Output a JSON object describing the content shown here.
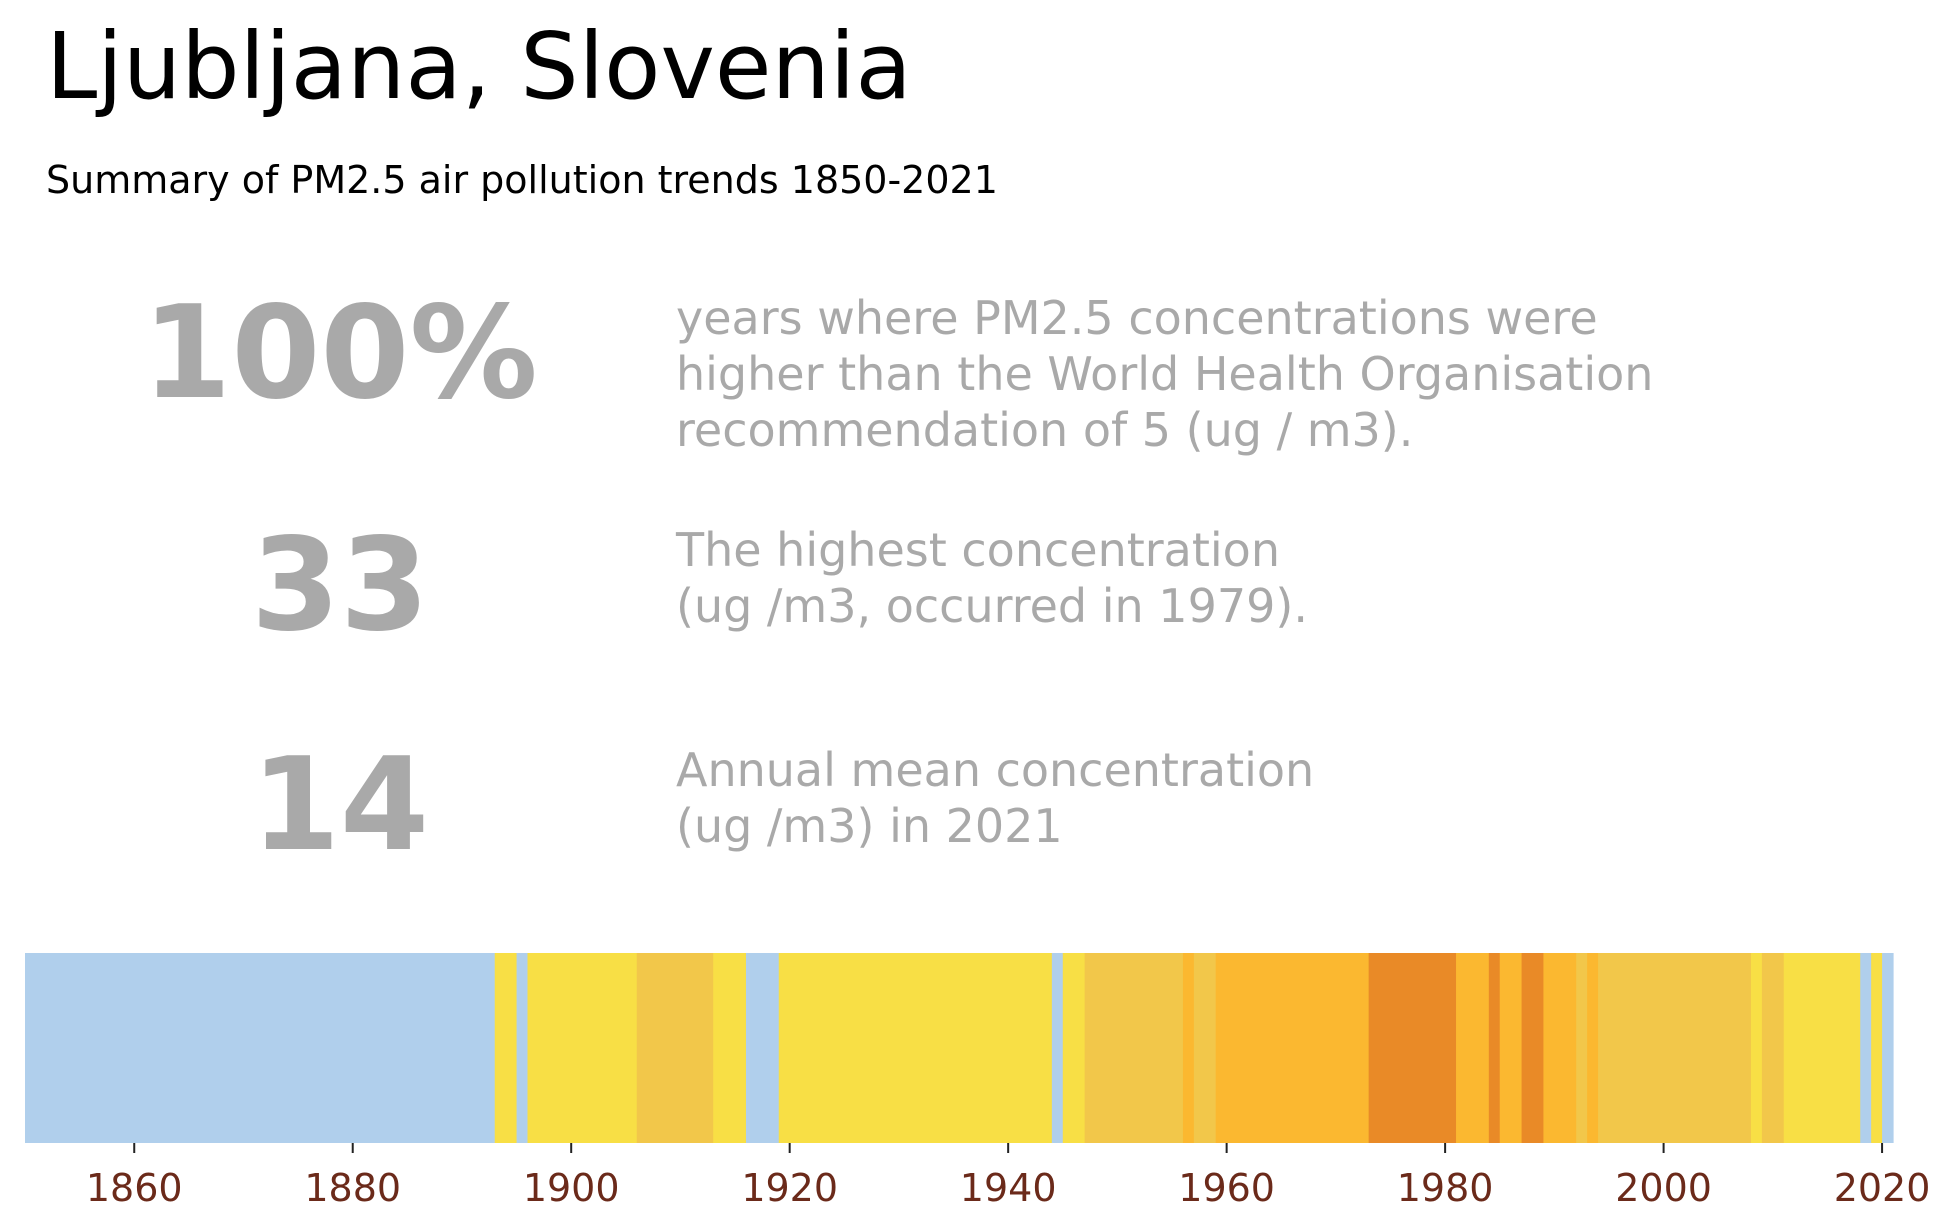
{
  "header": {
    "title": "Ljubljana, Slovenia",
    "subtitle": "Summary of PM2.5 air pollution trends 1850-2021"
  },
  "stats": [
    {
      "value": "100%",
      "description": "years where PM2.5 concentrations were\nhigher than the World Health Organisation\nrecommendation of 5 (ug / m3)."
    },
    {
      "value": "33",
      "description": "The highest concentration\n(ug /m3, occurred in 1979)."
    },
    {
      "value": "14",
      "description": "Annual mean concentration\n(ug /m3) in 2021"
    }
  ],
  "chart_data": {
    "type": "heatmap",
    "x_range": [
      1850,
      2021
    ],
    "xticks": [
      1860,
      1880,
      1900,
      1920,
      1940,
      1960,
      1980,
      2000,
      2020
    ],
    "segments": [
      {
        "start": 1850,
        "end": 1893,
        "color": "#b0cfec"
      },
      {
        "start": 1893,
        "end": 1895,
        "color": "#f8df45"
      },
      {
        "start": 1895,
        "end": 1896,
        "color": "#b0cfec"
      },
      {
        "start": 1896,
        "end": 1906,
        "color": "#f8df45"
      },
      {
        "start": 1906,
        "end": 1913,
        "color": "#f2c74a"
      },
      {
        "start": 1913,
        "end": 1916,
        "color": "#f8df45"
      },
      {
        "start": 1916,
        "end": 1919,
        "color": "#b0cfec"
      },
      {
        "start": 1919,
        "end": 1944,
        "color": "#f8df45"
      },
      {
        "start": 1944,
        "end": 1945,
        "color": "#b0cfec"
      },
      {
        "start": 1945,
        "end": 1947,
        "color": "#f8df45"
      },
      {
        "start": 1947,
        "end": 1956,
        "color": "#f2c74a"
      },
      {
        "start": 1956,
        "end": 1957,
        "color": "#fbb830"
      },
      {
        "start": 1957,
        "end": 1959,
        "color": "#f2c74a"
      },
      {
        "start": 1959,
        "end": 1973,
        "color": "#fbb830"
      },
      {
        "start": 1973,
        "end": 1981,
        "color": "#e98a27"
      },
      {
        "start": 1981,
        "end": 1984,
        "color": "#fbb830"
      },
      {
        "start": 1984,
        "end": 1985,
        "color": "#e98a27"
      },
      {
        "start": 1985,
        "end": 1987,
        "color": "#fbb830"
      },
      {
        "start": 1987,
        "end": 1989,
        "color": "#e98a27"
      },
      {
        "start": 1989,
        "end": 1992,
        "color": "#fbb830"
      },
      {
        "start": 1992,
        "end": 1993,
        "color": "#f2c74a"
      },
      {
        "start": 1993,
        "end": 1994,
        "color": "#fbb830"
      },
      {
        "start": 1994,
        "end": 2008,
        "color": "#f2c74a"
      },
      {
        "start": 2008,
        "end": 2009,
        "color": "#f8df45"
      },
      {
        "start": 2009,
        "end": 2011,
        "color": "#f2c74a"
      },
      {
        "start": 2011,
        "end": 2018,
        "color": "#f8df45"
      },
      {
        "start": 2018,
        "end": 2019,
        "color": "#b0cfec"
      },
      {
        "start": 2019,
        "end": 2020,
        "color": "#f8df45"
      },
      {
        "start": 2020,
        "end": 2021,
        "color": "#b0cfec"
      }
    ],
    "tick_color": "#6b2a1a"
  }
}
